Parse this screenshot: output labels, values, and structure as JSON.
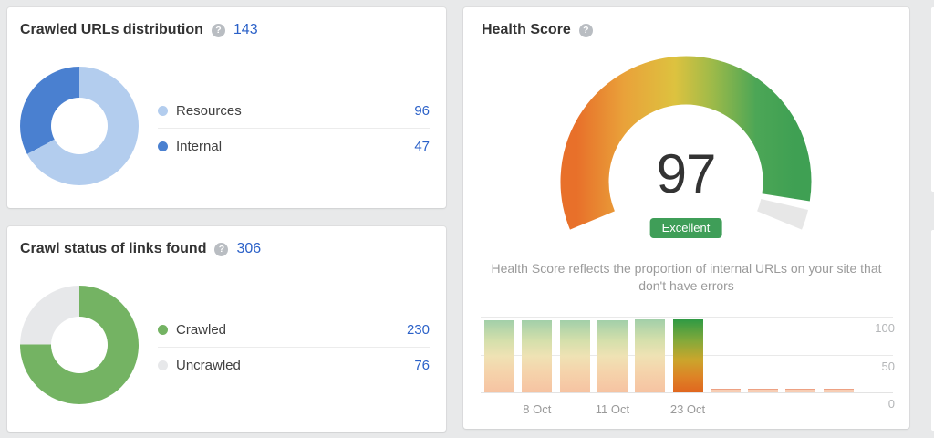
{
  "ui": {
    "background": "#e8e9ea",
    "card_background": "#ffffff",
    "help_glyph": "?",
    "link_color": "#2b61c8"
  },
  "crawled_urls": {
    "title": "Crawled URLs distribution",
    "total": "143",
    "legend": [
      {
        "label": "Resources",
        "value": "96",
        "color": "#b3cdee"
      },
      {
        "label": "Internal",
        "value": "47",
        "color": "#4a80d0"
      }
    ]
  },
  "crawl_status": {
    "title": "Crawl status of links found",
    "total": "306",
    "legend": [
      {
        "label": "Crawled",
        "value": "230",
        "color": "#74b363"
      },
      {
        "label": "Uncrawled",
        "value": "76",
        "color": "#e7e8ea"
      }
    ]
  },
  "health_score": {
    "title": "Health Score",
    "score": "97",
    "badge": "Excellent",
    "badge_color": "#3f9e58",
    "description": "Health Score reflects the proportion of internal URLs on your site that don't have errors",
    "gauge_gradient": [
      "#e8702a",
      "#e9a23a",
      "#ddc23f",
      "#9eba49",
      "#4ca656",
      "#3fa053"
    ],
    "gauge_remainder_color": "#e7e7e7"
  },
  "chart_data": [
    {
      "type": "pie",
      "style": "donut",
      "title": "Crawled URLs distribution",
      "categories": [
        "Resources",
        "Internal"
      ],
      "values": [
        96,
        47
      ],
      "total": 143,
      "colors": [
        "#b3cdee",
        "#4a80d0"
      ],
      "legend_position": "right"
    },
    {
      "type": "pie",
      "style": "donut",
      "title": "Crawl status of links found",
      "categories": [
        "Crawled",
        "Uncrawled"
      ],
      "values": [
        230,
        76
      ],
      "total": 306,
      "colors": [
        "#74b363",
        "#e7e8ea"
      ],
      "legend_position": "right"
    },
    {
      "type": "bar",
      "title": "Health Score history",
      "gauge_value": 97,
      "values": [
        95,
        95,
        95,
        95,
        97,
        97,
        2,
        2,
        2,
        2
      ],
      "highlight_index": 5,
      "x_tick_labels": [
        {
          "text": "8 Oct",
          "bar_index": 1
        },
        {
          "text": "11 Oct",
          "bar_index": 3
        },
        {
          "text": "23 Oct",
          "bar_index": 5
        }
      ],
      "y_ticks": [
        "100",
        "50",
        "0"
      ],
      "ylim": [
        0,
        100
      ],
      "grid": true,
      "y_axis_position": "right"
    }
  ]
}
